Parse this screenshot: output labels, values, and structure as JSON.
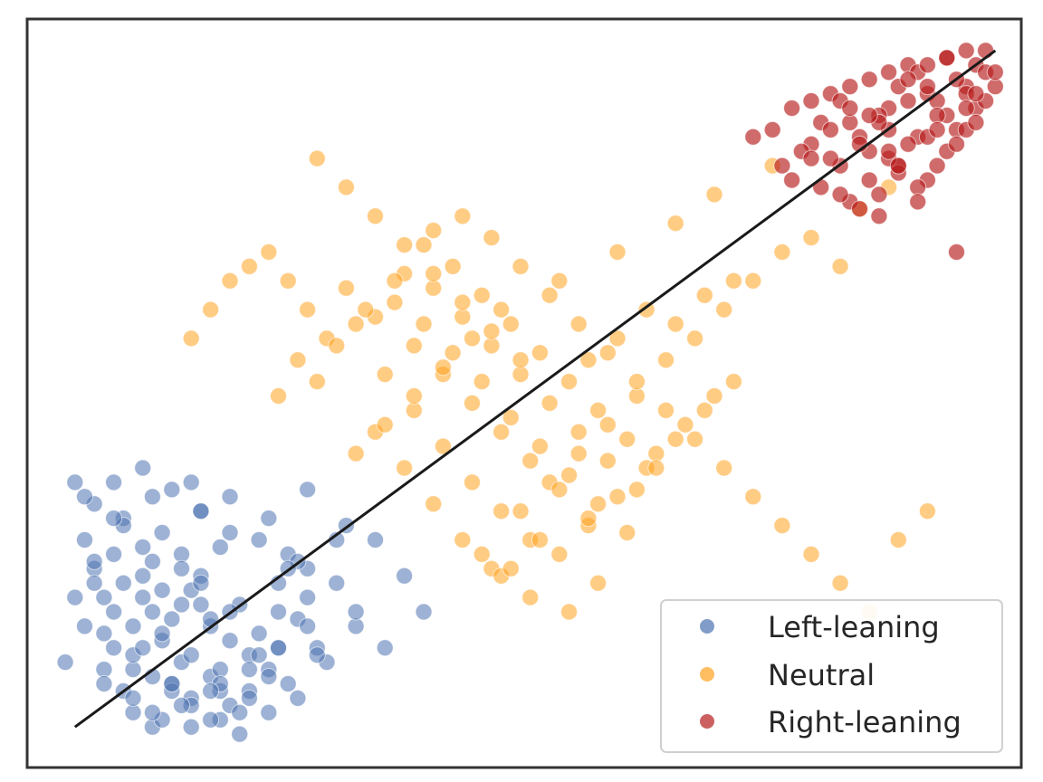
{
  "chart_data": {
    "type": "scatter",
    "title": "",
    "xlabel": "",
    "ylabel": "",
    "xlim": [
      0,
      1
    ],
    "ylim": [
      0,
      1
    ],
    "grid": false,
    "axes_ticks": false,
    "legend_position": "bottom-right",
    "series": [
      {
        "name": "Left-leaning",
        "color": "#4c72b0",
        "marker_alpha": 0.55,
        "x": [
          0.04,
          0.06,
          0.09,
          0.05,
          0.08,
          0.11,
          0.07,
          0.12,
          0.1,
          0.06,
          0.09,
          0.13,
          0.15,
          0.11,
          0.08,
          0.14,
          0.17,
          0.12,
          0.1,
          0.16,
          0.18,
          0.13,
          0.15,
          0.19,
          0.21,
          0.17,
          0.14,
          0.2,
          0.22,
          0.18,
          0.16,
          0.23,
          0.25,
          0.2,
          0.24,
          0.26,
          0.22,
          0.19,
          0.27,
          0.29,
          0.24,
          0.28,
          0.3,
          0.26,
          0.21,
          0.31,
          0.33,
          0.27,
          0.25,
          0.32,
          0.28,
          0.1,
          0.12,
          0.14,
          0.16,
          0.18,
          0.08,
          0.07,
          0.13,
          0.15,
          0.17,
          0.19,
          0.11,
          0.09,
          0.06,
          0.2,
          0.22,
          0.24,
          0.1,
          0.12,
          0.14,
          0.16,
          0.18,
          0.05,
          0.07,
          0.09,
          0.11,
          0.13,
          0.15,
          0.17,
          0.19,
          0.21,
          0.23,
          0.25,
          0.27,
          0.03,
          0.05,
          0.08,
          0.12,
          0.16,
          0.2,
          0.24,
          0.28,
          0.31,
          0.35,
          0.38,
          0.4,
          0.36,
          0.33,
          0.29,
          0.26,
          0.23,
          0.2,
          0.17,
          0.14,
          0.11,
          0.08,
          0.06,
          0.04,
          0.07,
          0.1,
          0.13,
          0.16,
          0.19,
          0.22,
          0.25,
          0.28,
          0.18,
          0.15,
          0.12
        ],
        "y": [
          0.38,
          0.35,
          0.33,
          0.3,
          0.28,
          0.25,
          0.22,
          0.2,
          0.18,
          0.26,
          0.24,
          0.31,
          0.28,
          0.22,
          0.15,
          0.19,
          0.34,
          0.27,
          0.12,
          0.23,
          0.18,
          0.16,
          0.13,
          0.29,
          0.21,
          0.25,
          0.1,
          0.2,
          0.14,
          0.11,
          0.08,
          0.17,
          0.24,
          0.07,
          0.12,
          0.28,
          0.09,
          0.05,
          0.19,
          0.15,
          0.06,
          0.22,
          0.13,
          0.1,
          0.03,
          0.24,
          0.18,
          0.08,
          0.15,
          0.32,
          0.26,
          0.14,
          0.11,
          0.09,
          0.07,
          0.05,
          0.2,
          0.17,
          0.23,
          0.26,
          0.21,
          0.12,
          0.29,
          0.32,
          0.24,
          0.16,
          0.08,
          0.11,
          0.06,
          0.04,
          0.1,
          0.14,
          0.19,
          0.18,
          0.12,
          0.09,
          0.15,
          0.17,
          0.21,
          0.24,
          0.09,
          0.06,
          0.14,
          0.2,
          0.27,
          0.13,
          0.36,
          0.33,
          0.36,
          0.38,
          0.36,
          0.33,
          0.37,
          0.3,
          0.3,
          0.25,
          0.2,
          0.15,
          0.2,
          0.14,
          0.26,
          0.3,
          0.31,
          0.34,
          0.37,
          0.4,
          0.38,
          0.27,
          0.22,
          0.1,
          0.08,
          0.05,
          0.04,
          0.1,
          0.12,
          0.15,
          0.18,
          0.09,
          0.07,
          0.06
        ]
      },
      {
        "name": "Neutral",
        "color": "#ffa21f",
        "marker_alpha": 0.55,
        "x": [
          0.27,
          0.3,
          0.33,
          0.35,
          0.38,
          0.41,
          0.44,
          0.47,
          0.5,
          0.53,
          0.56,
          0.59,
          0.62,
          0.65,
          0.68,
          0.71,
          0.74,
          0.77,
          0.8,
          0.83,
          0.36,
          0.39,
          0.42,
          0.45,
          0.48,
          0.51,
          0.54,
          0.57,
          0.6,
          0.63,
          0.66,
          0.69,
          0.72,
          0.37,
          0.4,
          0.43,
          0.46,
          0.49,
          0.52,
          0.55,
          0.58,
          0.61,
          0.64,
          0.67,
          0.7,
          0.38,
          0.41,
          0.44,
          0.47,
          0.5,
          0.53,
          0.56,
          0.59,
          0.62,
          0.32,
          0.35,
          0.39,
          0.42,
          0.45,
          0.48,
          0.51,
          0.54,
          0.57,
          0.4,
          0.43,
          0.46,
          0.49,
          0.52,
          0.55,
          0.58,
          0.61,
          0.64,
          0.28,
          0.26,
          0.24,
          0.22,
          0.2,
          0.18,
          0.16,
          0.25,
          0.29,
          0.31,
          0.34,
          0.37,
          0.41,
          0.44,
          0.47,
          0.5,
          0.53,
          0.56,
          0.59,
          0.62,
          0.65,
          0.68,
          0.71,
          0.74,
          0.77,
          0.8,
          0.83,
          0.86,
          0.89,
          0.92,
          0.85,
          0.88,
          0.76,
          0.7,
          0.66,
          0.6,
          0.54,
          0.48,
          0.45,
          0.42,
          0.39,
          0.36,
          0.33,
          0.48,
          0.51,
          0.55,
          0.58,
          0.46,
          0.49,
          0.52,
          0.5,
          0.47,
          0.44,
          0.41,
          0.38,
          0.35,
          0.32,
          0.29,
          0.57,
          0.6,
          0.63,
          0.66,
          0.69,
          0.72
        ],
        "y": [
          0.55,
          0.58,
          0.6,
          0.45,
          0.4,
          0.35,
          0.3,
          0.26,
          0.34,
          0.38,
          0.42,
          0.46,
          0.5,
          0.55,
          0.58,
          0.62,
          0.66,
          0.7,
          0.72,
          0.68,
          0.53,
          0.48,
          0.43,
          0.38,
          0.34,
          0.3,
          0.28,
          0.32,
          0.36,
          0.4,
          0.44,
          0.48,
          0.52,
          0.63,
          0.6,
          0.56,
          0.52,
          0.47,
          0.43,
          0.39,
          0.35,
          0.31,
          0.42,
          0.46,
          0.5,
          0.67,
          0.65,
          0.61,
          0.57,
          0.53,
          0.49,
          0.45,
          0.41,
          0.37,
          0.65,
          0.61,
          0.57,
          0.53,
          0.49,
          0.45,
          0.41,
          0.37,
          0.33,
          0.71,
          0.68,
          0.64,
          0.6,
          0.56,
          0.52,
          0.48,
          0.44,
          0.4,
          0.62,
          0.66,
          0.7,
          0.68,
          0.66,
          0.62,
          0.58,
          0.5,
          0.52,
          0.57,
          0.62,
          0.66,
          0.73,
          0.75,
          0.72,
          0.68,
          0.64,
          0.6,
          0.56,
          0.52,
          0.48,
          0.44,
          0.4,
          0.36,
          0.32,
          0.28,
          0.24,
          0.2,
          0.3,
          0.34,
          0.76,
          0.79,
          0.82,
          0.78,
          0.74,
          0.7,
          0.66,
          0.62,
          0.58,
          0.54,
          0.5,
          0.46,
          0.42,
          0.25,
          0.22,
          0.2,
          0.24,
          0.28,
          0.26,
          0.3,
          0.55,
          0.59,
          0.63,
          0.67,
          0.71,
          0.75,
          0.79,
          0.83,
          0.55,
          0.58,
          0.62,
          0.6,
          0.64,
          0.66
        ]
      },
      {
        "name": "Right-leaning",
        "color": "#b71c1c",
        "marker_alpha": 0.65,
        "x": [
          0.74,
          0.76,
          0.78,
          0.8,
          0.82,
          0.84,
          0.86,
          0.88,
          0.9,
          0.92,
          0.94,
          0.96,
          0.98,
          0.77,
          0.79,
          0.81,
          0.83,
          0.85,
          0.87,
          0.89,
          0.91,
          0.93,
          0.95,
          0.97,
          0.99,
          0.78,
          0.8,
          0.82,
          0.84,
          0.86,
          0.88,
          0.9,
          0.92,
          0.94,
          0.96,
          0.98,
          0.81,
          0.83,
          0.85,
          0.87,
          0.89,
          0.91,
          0.93,
          0.95,
          0.97,
          0.84,
          0.86,
          0.88,
          0.9,
          0.92,
          0.94,
          0.96,
          0.98,
          0.85,
          0.87,
          0.89,
          0.91,
          0.93,
          0.95,
          0.97,
          0.82,
          0.86,
          0.9,
          0.94,
          0.88,
          0.92,
          0.96,
          0.8,
          0.84,
          0.88,
          0.92,
          0.96,
          0.99,
          0.83,
          0.87,
          0.91,
          0.95,
          0.89,
          0.93,
          0.97
        ],
        "y": [
          0.86,
          0.87,
          0.9,
          0.85,
          0.92,
          0.88,
          0.94,
          0.9,
          0.96,
          0.92,
          0.97,
          0.93,
          0.98,
          0.82,
          0.84,
          0.88,
          0.91,
          0.86,
          0.89,
          0.93,
          0.95,
          0.91,
          0.94,
          0.96,
          0.93,
          0.8,
          0.83,
          0.87,
          0.9,
          0.84,
          0.87,
          0.91,
          0.93,
          0.89,
          0.92,
          0.95,
          0.79,
          0.82,
          0.85,
          0.88,
          0.82,
          0.86,
          0.89,
          0.87,
          0.9,
          0.77,
          0.8,
          0.83,
          0.85,
          0.8,
          0.84,
          0.87,
          0.91,
          0.76,
          0.78,
          0.81,
          0.79,
          0.82,
          0.85,
          0.88,
          0.83,
          0.89,
          0.94,
          0.97,
          0.95,
          0.96,
          0.98,
          0.91,
          0.93,
          0.84,
          0.86,
          0.9,
          0.95,
          0.78,
          0.75,
          0.77,
          0.7,
          0.82,
          0.87,
          0.92
        ]
      },
      {
        "name": "fit",
        "color": "#1a1a1a",
        "kind": "line",
        "x": [
          0.04,
          0.99
        ],
        "y": [
          0.04,
          0.98
        ]
      }
    ],
    "legend": [
      {
        "label": "Left-leaning",
        "color": "#4c72b0"
      },
      {
        "label": "Neutral",
        "color": "#ffa21f"
      },
      {
        "label": "Right-leaning",
        "color": "#b71c1c"
      }
    ]
  }
}
